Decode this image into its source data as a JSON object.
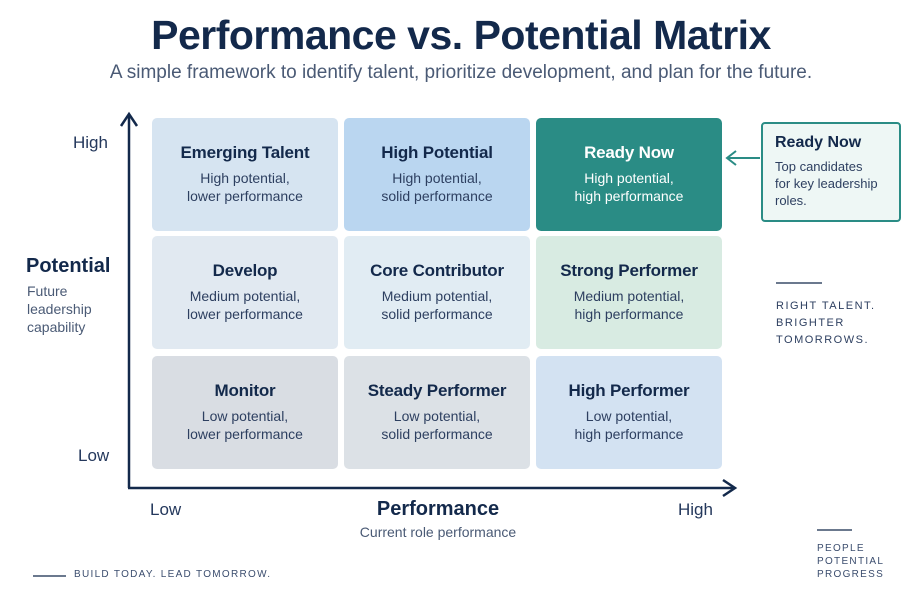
{
  "title": "Performance vs. Potential Matrix",
  "subtitle": "A simple framework to identify talent, prioritize development, and plan for the future.",
  "y_axis": {
    "title": "Potential",
    "subtitle": "Future leadership capability",
    "high_label": "High",
    "low_label": "Low"
  },
  "x_axis": {
    "title": "Performance",
    "subtitle": "Current role performance",
    "low_label": "Low",
    "high_label": "High"
  },
  "grid": {
    "rows": [
      {
        "potential": "High",
        "cells": [
          {
            "title": "Emerging Talent",
            "line1": "High potential,",
            "line2": "lower performance"
          },
          {
            "title": "High Potential",
            "line1": "High potential,",
            "line2": "solid performance"
          },
          {
            "title": "Ready Now",
            "line1": "High potential,",
            "line2": "high performance"
          }
        ]
      },
      {
        "potential": "Medium",
        "cells": [
          {
            "title": "Develop",
            "line1": "Medium potential,",
            "line2": "lower performance"
          },
          {
            "title": "Core Contributor",
            "line1": "Medium potential,",
            "line2": "solid performance"
          },
          {
            "title": "Strong Performer",
            "line1": "Medium potential,",
            "line2": "high performance"
          }
        ]
      },
      {
        "potential": "Low",
        "cells": [
          {
            "title": "Monitor",
            "line1": "Low potential,",
            "line2": "lower performance"
          },
          {
            "title": "Steady Performer",
            "line1": "Low potential,",
            "line2": "solid performance"
          },
          {
            "title": "High Performer",
            "line1": "Low potential,",
            "line2": "high performance"
          }
        ]
      }
    ]
  },
  "callout": {
    "title": "Ready Now",
    "line1": "Top candidates",
    "line2": "for key leadership",
    "line3": "roles."
  },
  "tagline": [
    "RIGHT TALENT.",
    "BRIGHTER",
    "TOMORROWS."
  ],
  "footer_left": "BUILD TODAY. LEAD TOMORROW.",
  "footer_right": [
    "PEOPLE",
    "POTENTIAL",
    "PROGRESS"
  ],
  "colors": {
    "navy": "#13294b",
    "accent_teal": "#2a8c85"
  }
}
